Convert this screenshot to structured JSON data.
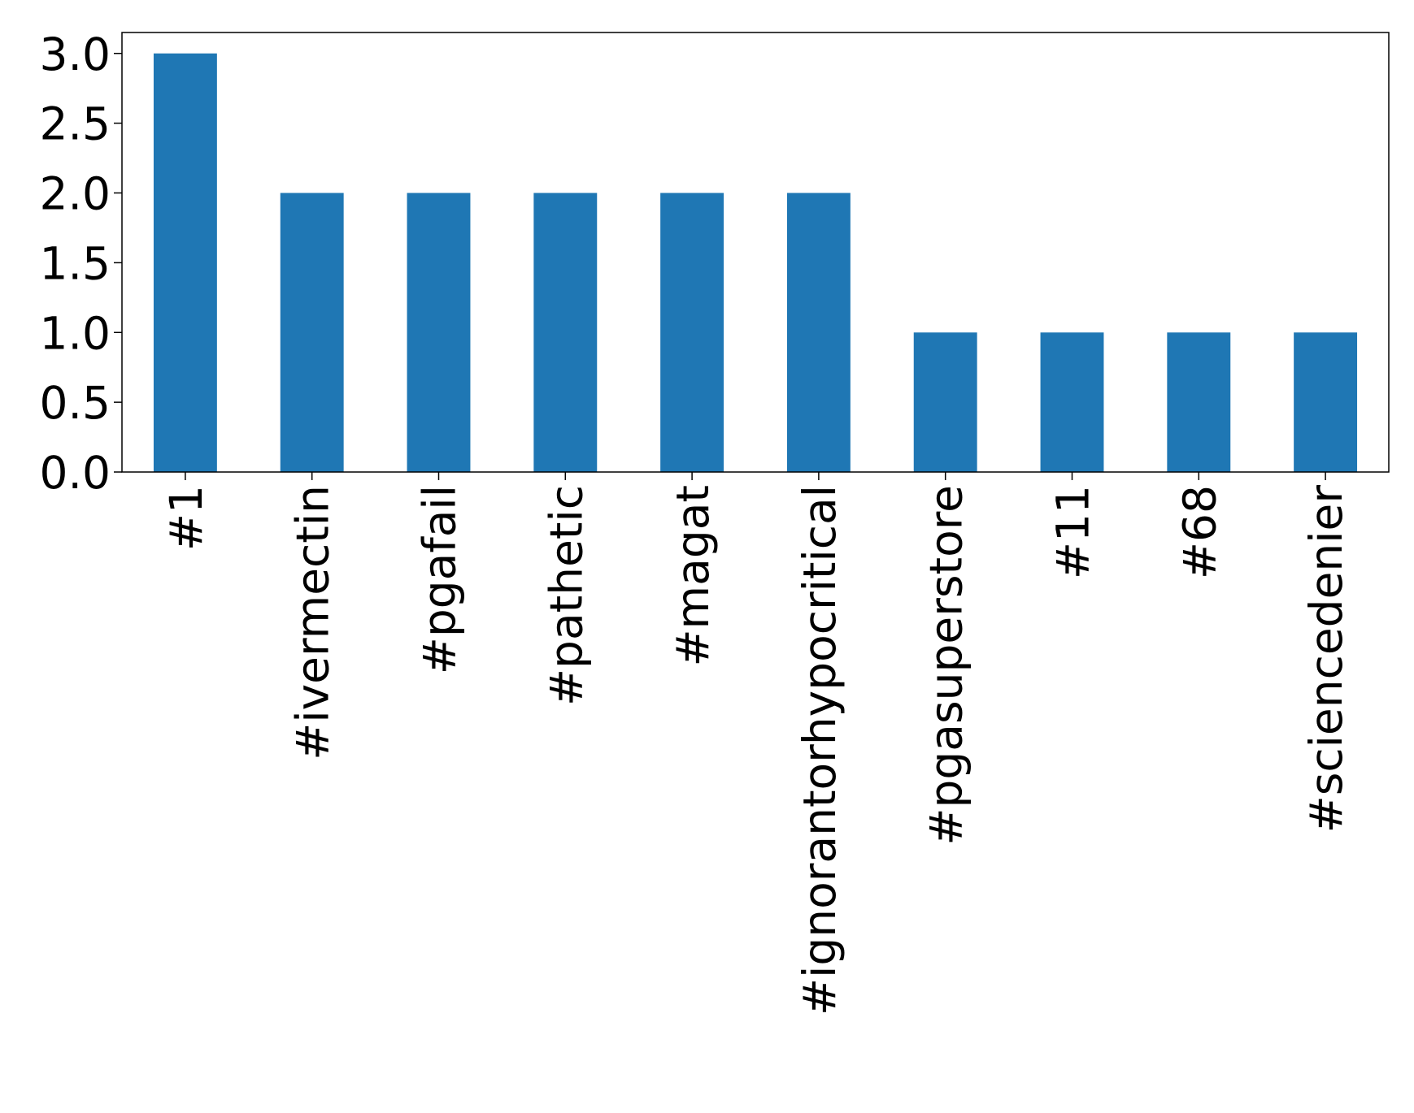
{
  "chart_data": {
    "type": "bar",
    "categories": [
      "#1",
      "#ivermectin",
      "#pgafail",
      "#pathetic",
      "#magat",
      "#ignorantorhypocritical",
      "#pgasuperstore",
      "#11",
      "#68",
      "#sciencedenier"
    ],
    "values": [
      3,
      2,
      2,
      2,
      2,
      2,
      1,
      1,
      1,
      1
    ],
    "color": "#1f77b4",
    "ylim": [
      0,
      3.15
    ],
    "yticks": [
      {
        "value": 0,
        "label": "0.0"
      },
      0.5,
      {
        "value": 1,
        "label": "1.0"
      },
      1.5,
      {
        "value": 2,
        "label": "2.0"
      },
      2.5,
      {
        "value": 3,
        "label": "3.0"
      }
    ]
  }
}
